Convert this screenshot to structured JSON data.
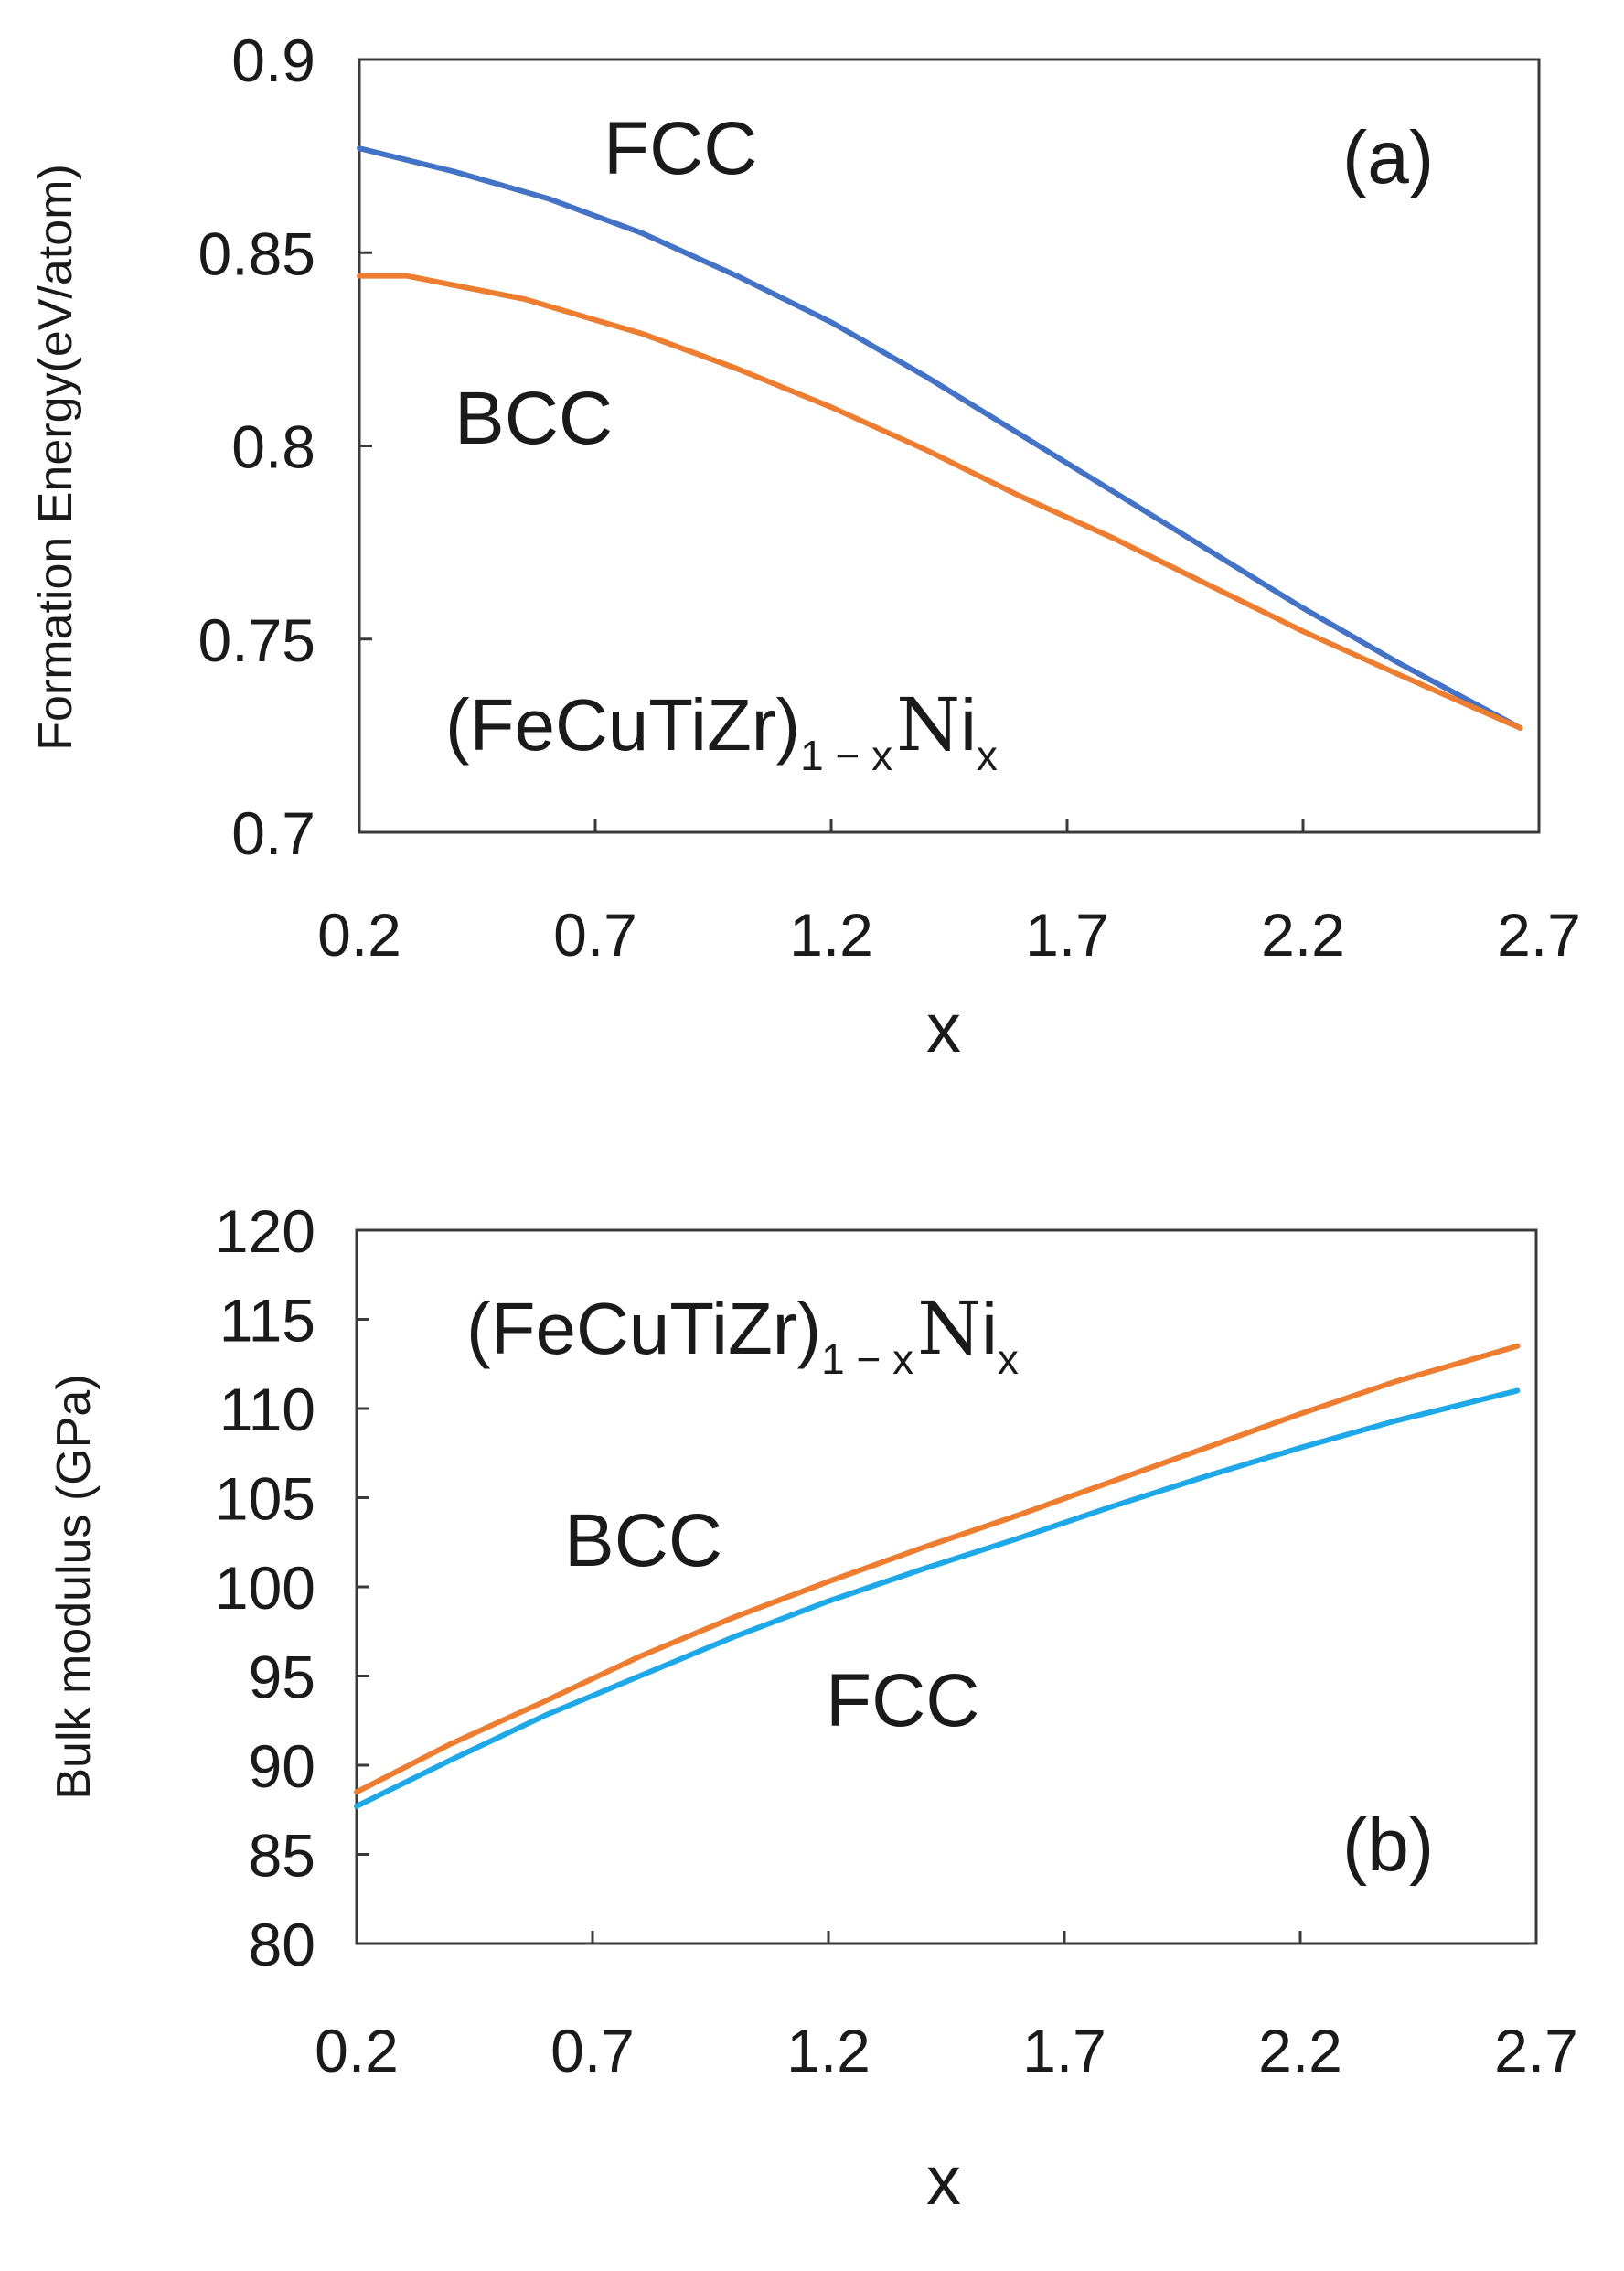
{
  "chart_data": [
    {
      "type": "line",
      "panel_tag": "(a)",
      "title": "",
      "xlabel": "x",
      "ylabel": "Formation Energy(eV/atom)",
      "xlim": [
        0.2,
        2.7
      ],
      "ylim": [
        0.7,
        0.9
      ],
      "x_ticks": [
        "0.2",
        "0.7",
        "1.2",
        "1.7",
        "2.2",
        "2.7"
      ],
      "y_ticks": [
        "0.7",
        "0.75",
        "0.8",
        "0.85",
        "0.9"
      ],
      "grid": false,
      "formula": {
        "main": "(FeCuTiZr)",
        "sub1": "1 − x",
        "element_dbl": "N",
        "element": "i",
        "sub2": "x"
      },
      "series": [
        {
          "name": "FCC",
          "color": "#4472c4",
          "x": [
            0.2,
            0.4,
            0.6,
            0.8,
            1.0,
            1.2,
            1.4,
            1.6,
            1.8,
            2.0,
            2.2,
            2.4,
            2.66
          ],
          "values": [
            0.877,
            0.871,
            0.864,
            0.855,
            0.844,
            0.832,
            0.818,
            0.803,
            0.788,
            0.773,
            0.758,
            0.744,
            0.727
          ]
        },
        {
          "name": "BCC",
          "color": "#ed7d31",
          "x": [
            0.2,
            0.3,
            0.55,
            0.8,
            1.0,
            1.2,
            1.4,
            1.6,
            1.8,
            2.0,
            2.2,
            2.4,
            2.66
          ],
          "values": [
            0.844,
            0.844,
            0.838,
            0.829,
            0.82,
            0.81,
            0.799,
            0.787,
            0.776,
            0.764,
            0.752,
            0.741,
            0.727
          ]
        }
      ]
    },
    {
      "type": "line",
      "panel_tag": "(b)",
      "title": "",
      "xlabel": "x",
      "ylabel": "Bulk modulus (GPa)",
      "xlim": [
        0.2,
        2.7
      ],
      "ylim": [
        80,
        120
      ],
      "x_ticks": [
        "0.2",
        "0.7",
        "1.2",
        "1.7",
        "2.2",
        "2.7"
      ],
      "y_ticks": [
        "80",
        "85",
        "90",
        "95",
        "100",
        "105",
        "110",
        "115",
        "120"
      ],
      "grid": false,
      "formula": {
        "main": "(FeCuTiZr)",
        "sub1": "1 − x",
        "element_dbl": "N",
        "element": "i",
        "sub2": "x"
      },
      "series": [
        {
          "name": "BCC",
          "color": "#ed7d31",
          "x": [
            0.2,
            0.4,
            0.6,
            0.8,
            1.0,
            1.2,
            1.4,
            1.6,
            1.8,
            2.0,
            2.2,
            2.4,
            2.66
          ],
          "values": [
            88.5,
            91.2,
            93.6,
            96.1,
            98.3,
            100.3,
            102.2,
            104.0,
            105.9,
            107.8,
            109.7,
            111.5,
            113.5
          ]
        },
        {
          "name": "FCC",
          "color": "#1fa8e8",
          "x": [
            0.2,
            0.4,
            0.6,
            0.8,
            1.0,
            1.2,
            1.4,
            1.6,
            1.8,
            2.0,
            2.2,
            2.4,
            2.66
          ],
          "values": [
            87.7,
            90.3,
            92.8,
            95.0,
            97.2,
            99.2,
            101.0,
            102.7,
            104.5,
            106.2,
            107.8,
            109.3,
            111.0
          ]
        }
      ]
    }
  ]
}
